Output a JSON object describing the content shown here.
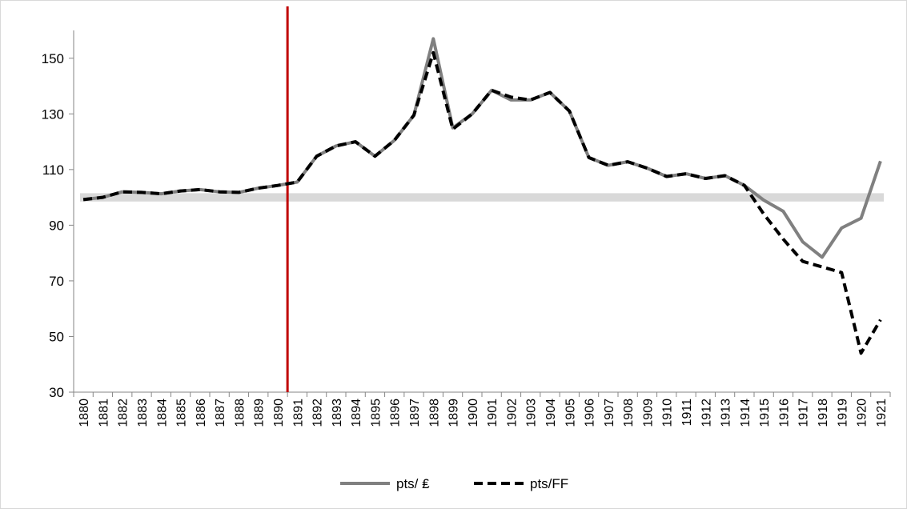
{
  "chart_data": {
    "type": "line",
    "categories": [
      "1880",
      "1881",
      "1882",
      "1883",
      "1884",
      "1885",
      "1886",
      "1887",
      "1888",
      "1889",
      "1890",
      "1891",
      "1892",
      "1893",
      "1894",
      "1895",
      "1896",
      "1897",
      "1898",
      "1899",
      "1900",
      "1901",
      "1902",
      "1903",
      "1904",
      "1905",
      "1906",
      "1907",
      "1908",
      "1909",
      "1910",
      "1911",
      "1912",
      "1913",
      "1914",
      "1915",
      "1916",
      "1917",
      "1918",
      "1919",
      "1920",
      "1921"
    ],
    "series": [
      {
        "name": "pts/ ₤",
        "color": "#808080",
        "dash": "solid",
        "values": [
          99.2,
          100,
          102,
          101.8,
          101.3,
          102.3,
          102.8,
          102,
          101.8,
          103.3,
          104.3,
          105.5,
          114.8,
          118.5,
          120,
          114.8,
          120.5,
          129.5,
          157,
          125,
          130,
          138.5,
          135,
          135,
          137.7,
          131,
          114.3,
          111.5,
          112.8,
          110.5,
          107.5,
          108.5,
          106.8,
          107.8,
          104.3,
          99,
          95,
          84,
          78.5,
          89,
          92.5,
          113
        ]
      },
      {
        "name": "pts/FF",
        "color": "#000000",
        "dash": "dashed",
        "values": [
          99.2,
          100,
          102,
          101.8,
          101.3,
          102.3,
          102.8,
          102,
          101.8,
          103.3,
          104.3,
          105.5,
          114.8,
          118.5,
          120,
          114.8,
          120.5,
          129.5,
          152,
          124.5,
          130,
          138.5,
          136,
          135,
          137.7,
          131,
          114.3,
          111.5,
          112.8,
          110.5,
          107.5,
          108.5,
          106.8,
          107.8,
          104.3,
          94,
          85,
          77,
          75,
          73,
          44,
          56
        ]
      }
    ],
    "yticks": [
      30,
      50,
      70,
      90,
      110,
      130,
      150
    ],
    "ylim": [
      30,
      160
    ],
    "reference_band": [
      98.5,
      101.5
    ],
    "vertical_marker_year": 1890.5,
    "legend_position": "bottom",
    "grid": false
  }
}
